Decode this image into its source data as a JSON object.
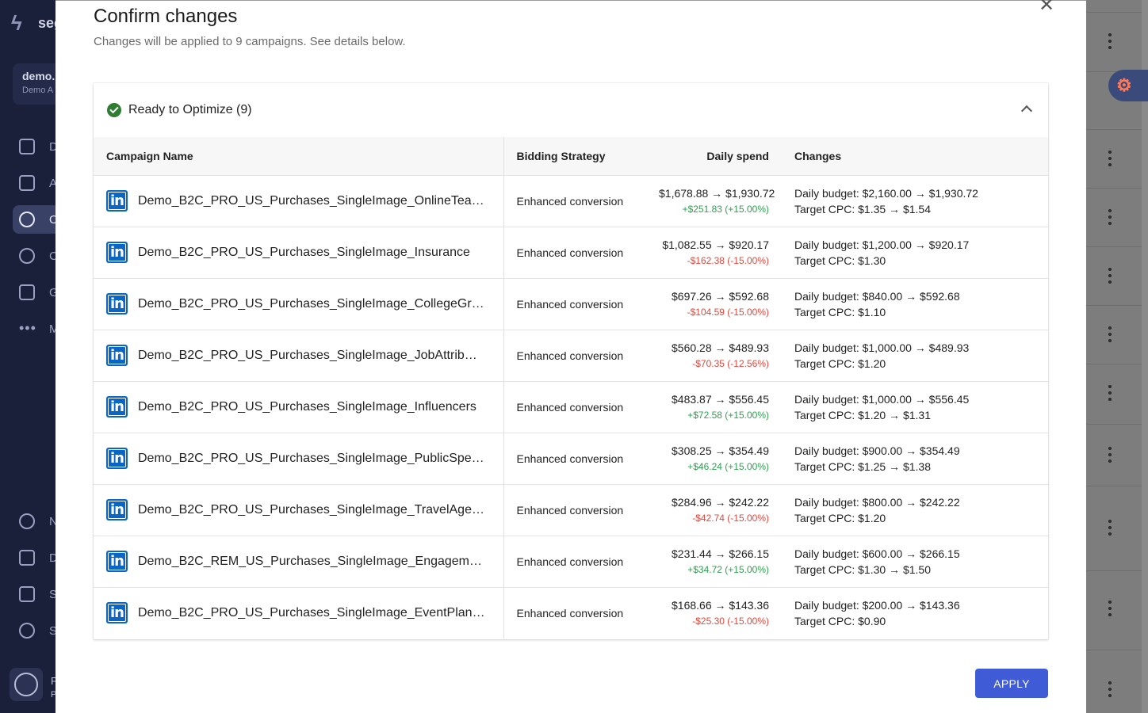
{
  "background": {
    "logo_text": "seg",
    "account": {
      "name": "demo.",
      "sub": "Demo A"
    },
    "nav_items": [
      {
        "label": "D",
        "icon": "dashboard-icon"
      },
      {
        "label": "A",
        "icon": "analytics-icon"
      },
      {
        "label": "O",
        "icon": "optimization-icon",
        "active": true
      },
      {
        "label": "C",
        "icon": "campaigns-icon"
      },
      {
        "label": "G",
        "icon": "flask-icon"
      },
      {
        "label": "M",
        "icon": "more-icon"
      }
    ],
    "bottom_nav": [
      {
        "label": "N",
        "icon": "bell-icon"
      },
      {
        "label": "D",
        "icon": "graduation-cap-icon"
      },
      {
        "label": "S",
        "icon": "chat-icon"
      },
      {
        "label": "S",
        "icon": "gear-icon"
      }
    ],
    "user_initial": "P",
    "user_sub": "P"
  },
  "modal": {
    "title": "Confirm changes",
    "subtitle": "Changes will be applied to 9 campaigns. See details below.",
    "section_title": "Ready to Optimize (9)",
    "columns": {
      "name": "Campaign Name",
      "bidding": "Bidding Strategy",
      "spend": "Daily spend",
      "changes": "Changes"
    },
    "rows": [
      {
        "name": "Demo_B2C_PRO_US_Purchases_SingleImage_OnlineTea…",
        "bidding": "Enhanced conversion",
        "spend": "$1,678.88 → $1,930.72",
        "delta": "+$251.83 (+15.00%)",
        "delta_sign": "pos",
        "change1": "Daily budget: $2,160.00 → $1,930.72",
        "change2": "Target CPC: $1.35 → $1.54"
      },
      {
        "name": "Demo_B2C_PRO_US_Purchases_SingleImage_Insurance",
        "bidding": "Enhanced conversion",
        "spend": "$1,082.55 → $920.17",
        "delta": "-$162.38 (-15.00%)",
        "delta_sign": "neg",
        "change1": "Daily budget: $1,200.00 → $920.17",
        "change2": "Target CPC: $1.30"
      },
      {
        "name": "Demo_B2C_PRO_US_Purchases_SingleImage_CollegeGr…",
        "bidding": "Enhanced conversion",
        "spend": "$697.26 → $592.68",
        "delta": "-$104.59 (-15.00%)",
        "delta_sign": "neg",
        "change1": "Daily budget: $840.00 → $592.68",
        "change2": "Target CPC: $1.10"
      },
      {
        "name": "Demo_B2C_PRO_US_Purchases_SingleImage_JobAttrib…",
        "bidding": "Enhanced conversion",
        "spend": "$560.28 → $489.93",
        "delta": "-$70.35 (-12.56%)",
        "delta_sign": "neg",
        "change1": "Daily budget: $1,000.00 → $489.93",
        "change2": "Target CPC: $1.20"
      },
      {
        "name": "Demo_B2C_PRO_US_Purchases_SingleImage_Influencers",
        "bidding": "Enhanced conversion",
        "spend": "$483.87 → $556.45",
        "delta": "+$72.58 (+15.00%)",
        "delta_sign": "pos",
        "change1": "Daily budget: $1,000.00 → $556.45",
        "change2": "Target CPC: $1.20 → $1.31"
      },
      {
        "name": "Demo_B2C_PRO_US_Purchases_SingleImage_PublicSpe…",
        "bidding": "Enhanced conversion",
        "spend": "$308.25 → $354.49",
        "delta": "+$46.24 (+15.00%)",
        "delta_sign": "pos",
        "change1": "Daily budget: $900.00 → $354.49",
        "change2": "Target CPC: $1.25 → $1.38"
      },
      {
        "name": "Demo_B2C_PRO_US_Purchases_SingleImage_TravelAge…",
        "bidding": "Enhanced conversion",
        "spend": "$284.96 → $242.22",
        "delta": "-$42.74 (-15.00%)",
        "delta_sign": "neg",
        "change1": "Daily budget: $800.00 → $242.22",
        "change2": "Target CPC: $1.20"
      },
      {
        "name": "Demo_B2C_REM_US_Purchases_SingleImage_Engagem…",
        "bidding": "Enhanced conversion",
        "spend": "$231.44 → $266.15",
        "delta": "+$34.72 (+15.00%)",
        "delta_sign": "pos",
        "change1": "Daily budget: $600.00 → $266.15",
        "change2": "Target CPC: $1.30 → $1.50"
      },
      {
        "name": "Demo_B2C_PRO_US_Purchases_SingleImage_EventPlan…",
        "bidding": "Enhanced conversion",
        "spend": "$168.66 → $143.36",
        "delta": "-$25.30 (-15.00%)",
        "delta_sign": "neg",
        "change1": "Daily budget: $200.00 → $143.36",
        "change2": "Target CPC: $0.90"
      }
    ],
    "apply_label": "APPLY",
    "close_icon": "close-icon",
    "row_icon": "linkedin-icon"
  },
  "colors": {
    "accent": "#3f5bd6",
    "positive": "#2e9e4f",
    "negative": "#e0483e",
    "linkedin": "#0a66c2",
    "sidebar": "#1a1f3a"
  }
}
